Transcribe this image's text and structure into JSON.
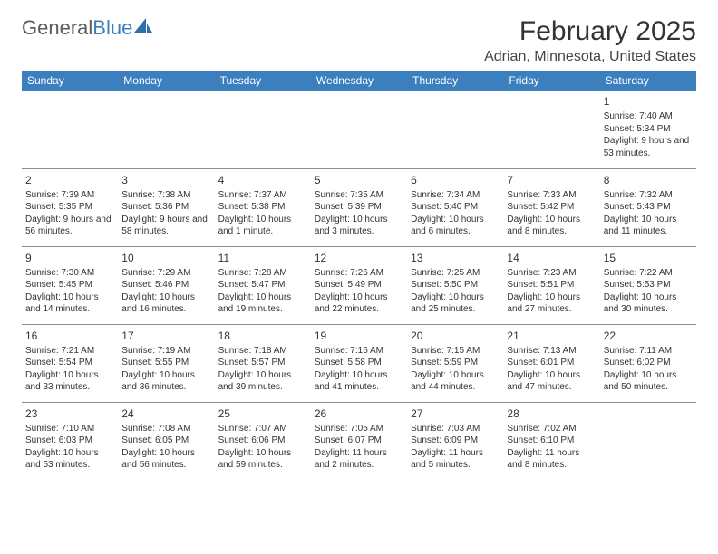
{
  "logo": {
    "text1": "General",
    "text2": "Blue"
  },
  "title": "February 2025",
  "location": "Adrian, Minnesota, United States",
  "colors": {
    "header_bg": "#3b7fbf",
    "header_text": "#ffffff",
    "border": "#7e93a8",
    "text": "#333333",
    "page_bg": "#ffffff"
  },
  "weekdays": [
    "Sunday",
    "Monday",
    "Tuesday",
    "Wednesday",
    "Thursday",
    "Friday",
    "Saturday"
  ],
  "weeks": [
    [
      null,
      null,
      null,
      null,
      null,
      null,
      {
        "n": "1",
        "sr": "7:40 AM",
        "ss": "5:34 PM",
        "dl": "9 hours and 53 minutes."
      }
    ],
    [
      {
        "n": "2",
        "sr": "7:39 AM",
        "ss": "5:35 PM",
        "dl": "9 hours and 56 minutes."
      },
      {
        "n": "3",
        "sr": "7:38 AM",
        "ss": "5:36 PM",
        "dl": "9 hours and 58 minutes."
      },
      {
        "n": "4",
        "sr": "7:37 AM",
        "ss": "5:38 PM",
        "dl": "10 hours and 1 minute."
      },
      {
        "n": "5",
        "sr": "7:35 AM",
        "ss": "5:39 PM",
        "dl": "10 hours and 3 minutes."
      },
      {
        "n": "6",
        "sr": "7:34 AM",
        "ss": "5:40 PM",
        "dl": "10 hours and 6 minutes."
      },
      {
        "n": "7",
        "sr": "7:33 AM",
        "ss": "5:42 PM",
        "dl": "10 hours and 8 minutes."
      },
      {
        "n": "8",
        "sr": "7:32 AM",
        "ss": "5:43 PM",
        "dl": "10 hours and 11 minutes."
      }
    ],
    [
      {
        "n": "9",
        "sr": "7:30 AM",
        "ss": "5:45 PM",
        "dl": "10 hours and 14 minutes."
      },
      {
        "n": "10",
        "sr": "7:29 AM",
        "ss": "5:46 PM",
        "dl": "10 hours and 16 minutes."
      },
      {
        "n": "11",
        "sr": "7:28 AM",
        "ss": "5:47 PM",
        "dl": "10 hours and 19 minutes."
      },
      {
        "n": "12",
        "sr": "7:26 AM",
        "ss": "5:49 PM",
        "dl": "10 hours and 22 minutes."
      },
      {
        "n": "13",
        "sr": "7:25 AM",
        "ss": "5:50 PM",
        "dl": "10 hours and 25 minutes."
      },
      {
        "n": "14",
        "sr": "7:23 AM",
        "ss": "5:51 PM",
        "dl": "10 hours and 27 minutes."
      },
      {
        "n": "15",
        "sr": "7:22 AM",
        "ss": "5:53 PM",
        "dl": "10 hours and 30 minutes."
      }
    ],
    [
      {
        "n": "16",
        "sr": "7:21 AM",
        "ss": "5:54 PM",
        "dl": "10 hours and 33 minutes."
      },
      {
        "n": "17",
        "sr": "7:19 AM",
        "ss": "5:55 PM",
        "dl": "10 hours and 36 minutes."
      },
      {
        "n": "18",
        "sr": "7:18 AM",
        "ss": "5:57 PM",
        "dl": "10 hours and 39 minutes."
      },
      {
        "n": "19",
        "sr": "7:16 AM",
        "ss": "5:58 PM",
        "dl": "10 hours and 41 minutes."
      },
      {
        "n": "20",
        "sr": "7:15 AM",
        "ss": "5:59 PM",
        "dl": "10 hours and 44 minutes."
      },
      {
        "n": "21",
        "sr": "7:13 AM",
        "ss": "6:01 PM",
        "dl": "10 hours and 47 minutes."
      },
      {
        "n": "22",
        "sr": "7:11 AM",
        "ss": "6:02 PM",
        "dl": "10 hours and 50 minutes."
      }
    ],
    [
      {
        "n": "23",
        "sr": "7:10 AM",
        "ss": "6:03 PM",
        "dl": "10 hours and 53 minutes."
      },
      {
        "n": "24",
        "sr": "7:08 AM",
        "ss": "6:05 PM",
        "dl": "10 hours and 56 minutes."
      },
      {
        "n": "25",
        "sr": "7:07 AM",
        "ss": "6:06 PM",
        "dl": "10 hours and 59 minutes."
      },
      {
        "n": "26",
        "sr": "7:05 AM",
        "ss": "6:07 PM",
        "dl": "11 hours and 2 minutes."
      },
      {
        "n": "27",
        "sr": "7:03 AM",
        "ss": "6:09 PM",
        "dl": "11 hours and 5 minutes."
      },
      {
        "n": "28",
        "sr": "7:02 AM",
        "ss": "6:10 PM",
        "dl": "11 hours and 8 minutes."
      },
      null
    ]
  ],
  "labels": {
    "sunrise": "Sunrise:",
    "sunset": "Sunset:",
    "daylight": "Daylight:"
  }
}
